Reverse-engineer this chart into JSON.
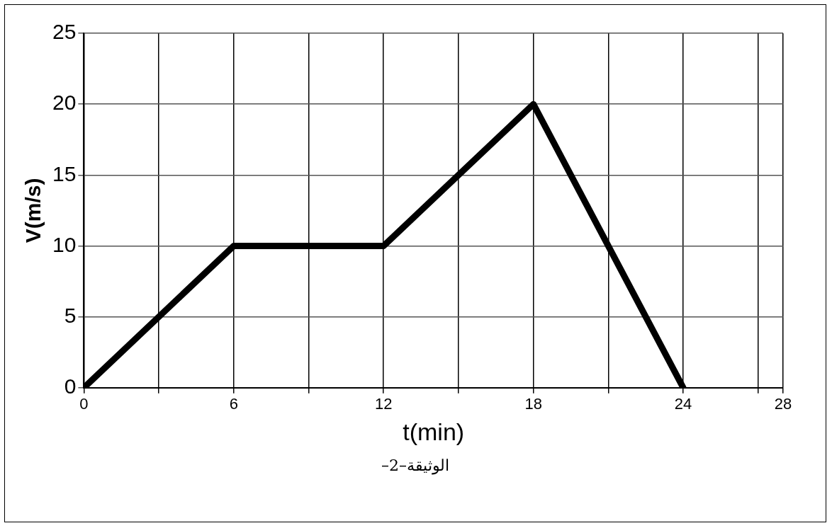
{
  "chart_data": {
    "type": "line",
    "xlabel": "t(min)",
    "ylabel": "V(m/s)",
    "x": [
      0,
      6,
      12,
      18,
      24
    ],
    "series": [
      {
        "color": "#000000",
        "values": [
          0,
          10,
          10,
          20,
          0
        ]
      }
    ],
    "xlim": [
      0,
      28
    ],
    "xticks": [
      0,
      {
        "value": 3,
        "label": null
      },
      6,
      {
        "value": 9,
        "label": null
      },
      12,
      {
        "value": 15,
        "label": null
      },
      18,
      {
        "value": 21,
        "label": null
      },
      24,
      {
        "value": 27,
        "label": null
      },
      28
    ],
    "ylim": [
      0,
      25
    ],
    "yticks": [
      0,
      5,
      10,
      15,
      20,
      25
    ],
    "grid": true,
    "legend": false,
    "marker": "none",
    "line_style": "solid",
    "annotations": [
      "الوثيقة–2–"
    ]
  }
}
